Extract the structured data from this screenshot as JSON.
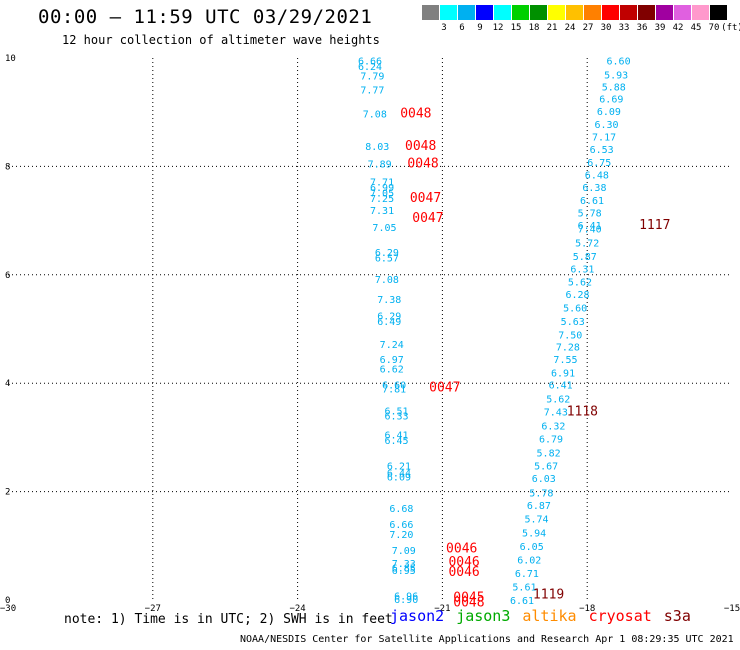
{
  "title": "00:00 – 11:59 UTC 03/29/2021",
  "subtitle": "12 hour collection of altimeter wave heights",
  "color_scale": {
    "colors": [
      "#808080",
      "#00ffff",
      "#00b0f0",
      "#0000ff",
      "#00ffff",
      "#00d000",
      "#009000",
      "#ffff00",
      "#ffc000",
      "#ff8000",
      "#ff0000",
      "#c00000",
      "#800000",
      "#a000a0",
      "#e060e0",
      "#ff99cc",
      "#000000"
    ],
    "labels": [
      "3",
      "6",
      "9",
      "12",
      "15",
      "18",
      "21",
      "24",
      "27",
      "30",
      "33",
      "36",
      "39",
      "42",
      "45",
      "70",
      "(ft)"
    ]
  },
  "note": "note:  1) Time is in UTC; 2) SWH is in feet",
  "legend": [
    {
      "name": "jason2",
      "color": "#0000ff"
    },
    {
      "name": "jason3",
      "color": "#00aa00"
    },
    {
      "name": "altika",
      "color": "#ff8c00"
    },
    {
      "name": "cryosat",
      "color": "#ff0000"
    },
    {
      "name": "s3a",
      "color": "#800000"
    }
  ],
  "footer": "NOAA/NESDIS Center for Satellite Applications and Research   Apr  1 08:29:35 UTC 2021",
  "chart_data": {
    "type": "scatter",
    "xlim": [
      -30,
      -15
    ],
    "ylim": [
      0,
      10
    ],
    "x_ticks": [
      "−30",
      "−27",
      "−24",
      "−21",
      "−18",
      "−15"
    ],
    "y_ticks": [
      "0",
      "2",
      "4",
      "6",
      "8",
      "10"
    ],
    "grid": true,
    "series": [
      {
        "name": "swh_left",
        "color": "#00b0f0",
        "points": [
          {
            "x": -22.5,
            "y": 9.95,
            "label": "6.66"
          },
          {
            "x": -22.5,
            "y": 9.85,
            "label": "6.24"
          },
          {
            "x": -22.45,
            "y": 9.68,
            "label": "7.79"
          },
          {
            "x": -22.45,
            "y": 9.42,
            "label": "7.77"
          },
          {
            "x": -22.4,
            "y": 8.98,
            "label": "7.08"
          },
          {
            "x": -22.35,
            "y": 8.38,
            "label": "8.03"
          },
          {
            "x": -22.3,
            "y": 8.05,
            "label": "7.89"
          },
          {
            "x": -22.25,
            "y": 7.72,
            "label": "7.71"
          },
          {
            "x": -22.25,
            "y": 7.62,
            "label": "6.99"
          },
          {
            "x": -22.25,
            "y": 7.52,
            "label": "7.05"
          },
          {
            "x": -22.25,
            "y": 7.42,
            "label": "7.25"
          },
          {
            "x": -22.25,
            "y": 7.2,
            "label": "7.31"
          },
          {
            "x": -22.2,
            "y": 6.88,
            "label": "7.05"
          },
          {
            "x": -22.15,
            "y": 6.42,
            "label": "6.29"
          },
          {
            "x": -22.15,
            "y": 6.32,
            "label": "6.57"
          },
          {
            "x": -22.15,
            "y": 5.92,
            "label": "7.08"
          },
          {
            "x": -22.1,
            "y": 5.55,
            "label": "7.38"
          },
          {
            "x": -22.1,
            "y": 5.25,
            "label": "6.29"
          },
          {
            "x": -22.1,
            "y": 5.15,
            "label": "6.49"
          },
          {
            "x": -22.05,
            "y": 4.72,
            "label": "7.24"
          },
          {
            "x": -22.05,
            "y": 4.45,
            "label": "6.97"
          },
          {
            "x": -22.05,
            "y": 4.27,
            "label": "6.62"
          },
          {
            "x": -22.0,
            "y": 3.98,
            "label": "6.60"
          },
          {
            "x": -22.0,
            "y": 3.9,
            "label": "7.81"
          },
          {
            "x": -21.95,
            "y": 3.5,
            "label": "6.51"
          },
          {
            "x": -21.95,
            "y": 3.4,
            "label": "6.33"
          },
          {
            "x": -21.95,
            "y": 3.05,
            "label": "6.41"
          },
          {
            "x": -21.95,
            "y": 2.95,
            "label": "6.45"
          },
          {
            "x": -21.9,
            "y": 2.48,
            "label": "6.21"
          },
          {
            "x": -21.9,
            "y": 2.35,
            "label": "6.44"
          },
          {
            "x": -21.9,
            "y": 2.28,
            "label": "6.09"
          },
          {
            "x": -21.85,
            "y": 1.7,
            "label": "6.68"
          },
          {
            "x": -21.85,
            "y": 1.4,
            "label": "6.66"
          },
          {
            "x": -21.85,
            "y": 1.22,
            "label": "7.20"
          },
          {
            "x": -21.8,
            "y": 0.92,
            "label": "7.09"
          },
          {
            "x": -21.8,
            "y": 0.68,
            "label": "7.33"
          },
          {
            "x": -21.8,
            "y": 0.6,
            "label": "6.85"
          },
          {
            "x": -21.8,
            "y": 0.55,
            "label": "6.95"
          },
          {
            "x": -21.75,
            "y": 0.08,
            "label": "6.96"
          },
          {
            "x": -21.75,
            "y": 0.02,
            "label": "6.90"
          }
        ]
      },
      {
        "name": "swh_right",
        "color": "#00b0f0",
        "points": [
          {
            "x": -17.35,
            "y": 9.95,
            "label": "6.60"
          },
          {
            "x": -17.4,
            "y": 9.7,
            "label": "5.93"
          },
          {
            "x": -17.45,
            "y": 9.47,
            "label": "5.88"
          },
          {
            "x": -17.5,
            "y": 9.25,
            "label": "6.69"
          },
          {
            "x": -17.55,
            "y": 9.02,
            "label": "6.09"
          },
          {
            "x": -17.6,
            "y": 8.78,
            "label": "6.30"
          },
          {
            "x": -17.65,
            "y": 8.55,
            "label": "7.17"
          },
          {
            "x": -17.7,
            "y": 8.32,
            "label": "6.53"
          },
          {
            "x": -17.75,
            "y": 8.08,
            "label": "6.75"
          },
          {
            "x": -17.8,
            "y": 7.85,
            "label": "6.48"
          },
          {
            "x": -17.85,
            "y": 7.62,
            "label": "6.38"
          },
          {
            "x": -17.9,
            "y": 7.38,
            "label": "6.61"
          },
          {
            "x": -17.95,
            "y": 7.15,
            "label": "5.78"
          },
          {
            "x": -17.95,
            "y": 6.92,
            "label": "6.41"
          },
          {
            "x": -17.95,
            "y": 6.85,
            "label": "7.40"
          },
          {
            "x": -18.0,
            "y": 6.6,
            "label": "5.72"
          },
          {
            "x": -18.05,
            "y": 6.35,
            "label": "5.87"
          },
          {
            "x": -18.1,
            "y": 6.12,
            "label": "6.31"
          },
          {
            "x": -18.15,
            "y": 5.88,
            "label": "5.62"
          },
          {
            "x": -18.2,
            "y": 5.65,
            "label": "6.28"
          },
          {
            "x": -18.25,
            "y": 5.4,
            "label": "5.60"
          },
          {
            "x": -18.3,
            "y": 5.15,
            "label": "5.63"
          },
          {
            "x": -18.35,
            "y": 4.9,
            "label": "7.50"
          },
          {
            "x": -18.4,
            "y": 4.68,
            "label": "7.28"
          },
          {
            "x": -18.45,
            "y": 4.45,
            "label": "7.55"
          },
          {
            "x": -18.5,
            "y": 4.2,
            "label": "6.91"
          },
          {
            "x": -18.55,
            "y": 3.98,
            "label": "6.41"
          },
          {
            "x": -18.6,
            "y": 3.72,
            "label": "5.62"
          },
          {
            "x": -18.65,
            "y": 3.48,
            "label": "7.43"
          },
          {
            "x": -18.7,
            "y": 3.22,
            "label": "6.32"
          },
          {
            "x": -18.75,
            "y": 2.98,
            "label": "6.79"
          },
          {
            "x": -18.8,
            "y": 2.72,
            "label": "5.82"
          },
          {
            "x": -18.85,
            "y": 2.48,
            "label": "5.67"
          },
          {
            "x": -18.9,
            "y": 2.25,
            "label": "6.03"
          },
          {
            "x": -18.95,
            "y": 1.98,
            "label": "5.78"
          },
          {
            "x": -19.0,
            "y": 1.75,
            "label": "6.87"
          },
          {
            "x": -19.05,
            "y": 1.5,
            "label": "5.74"
          },
          {
            "x": -19.1,
            "y": 1.25,
            "label": "5.94"
          },
          {
            "x": -19.15,
            "y": 1.0,
            "label": "6.05"
          },
          {
            "x": -19.2,
            "y": 0.75,
            "label": "6.02"
          },
          {
            "x": -19.25,
            "y": 0.5,
            "label": "6.71"
          },
          {
            "x": -19.3,
            "y": 0.25,
            "label": "5.61"
          },
          {
            "x": -19.35,
            "y": 0.0,
            "label": "6.61"
          }
        ]
      },
      {
        "name": "cryosat",
        "color": "#ff0000",
        "points": [
          {
            "x": -21.55,
            "y": 8.98,
            "label": "0048"
          },
          {
            "x": -21.45,
            "y": 8.38,
            "label": "0048"
          },
          {
            "x": -21.4,
            "y": 8.05,
            "label": "0048"
          },
          {
            "x": -21.35,
            "y": 7.42,
            "label": "0047"
          },
          {
            "x": -21.3,
            "y": 7.05,
            "label": "0047"
          },
          {
            "x": -20.95,
            "y": 3.92,
            "label": "0047"
          },
          {
            "x": -20.6,
            "y": 0.95,
            "label": "0046"
          },
          {
            "x": -20.55,
            "y": 0.7,
            "label": "0046"
          },
          {
            "x": -20.55,
            "y": 0.52,
            "label": "0046"
          },
          {
            "x": -20.45,
            "y": 0.05,
            "label": "0045"
          },
          {
            "x": -20.45,
            "y": -0.05,
            "label": "0048"
          }
        ]
      },
      {
        "name": "s3a",
        "color": "#800000",
        "points": [
          {
            "x": -16.6,
            "y": 6.92,
            "label": "1117"
          },
          {
            "x": -18.1,
            "y": 3.48,
            "label": "1118"
          },
          {
            "x": -18.8,
            "y": 0.1,
            "label": "1119"
          }
        ]
      }
    ]
  }
}
